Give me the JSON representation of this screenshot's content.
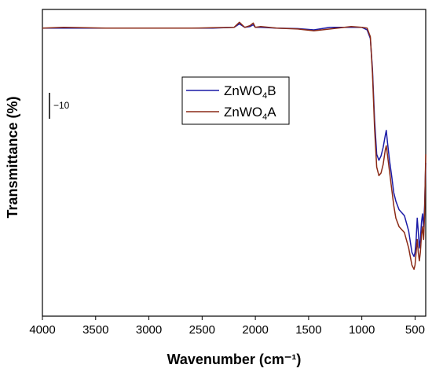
{
  "chart_data": {
    "type": "line",
    "title": "",
    "xlabel": "Wavenumber (cm⁻¹)",
    "ylabel": "Transmittance (%)",
    "xlim": [
      4000,
      400
    ],
    "x_reversed": true,
    "ylim": [
      -4,
      32
    ],
    "y_ticks_shown": false,
    "xticks": [
      4000,
      3500,
      3000,
      2500,
      2000,
      1500,
      1000,
      500
    ],
    "xtick_labels": [
      "4000",
      "3500",
      "3000",
      "2500",
      "2000",
      "1500",
      "1000",
      "500"
    ],
    "grid": false,
    "legend_position": "upper-center",
    "scale_bar_label": "−10",
    "series": [
      {
        "name": "ZnWO₄B",
        "name_base": "ZnWO",
        "name_sub": "4",
        "name_tail": "B",
        "color": "#1a1aa6",
        "points": [
          [
            4000,
            29.8
          ],
          [
            3800,
            29.8
          ],
          [
            3600,
            29.8
          ],
          [
            3400,
            29.8
          ],
          [
            3200,
            29.8
          ],
          [
            3000,
            29.8
          ],
          [
            2800,
            29.8
          ],
          [
            2600,
            29.8
          ],
          [
            2400,
            29.8
          ],
          [
            2200,
            29.9
          ],
          [
            2150,
            30.3
          ],
          [
            2100,
            29.9
          ],
          [
            2050,
            30.0
          ],
          [
            2020,
            30.2
          ],
          [
            2000,
            29.9
          ],
          [
            1950,
            29.9
          ],
          [
            1800,
            29.8
          ],
          [
            1600,
            29.75
          ],
          [
            1450,
            29.6
          ],
          [
            1300,
            29.9
          ],
          [
            1100,
            29.9
          ],
          [
            1000,
            29.9
          ],
          [
            950,
            29.6
          ],
          [
            920,
            28.6
          ],
          [
            900,
            25.0
          ],
          [
            880,
            19.0
          ],
          [
            860,
            15.0
          ],
          [
            840,
            14.3
          ],
          [
            820,
            14.8
          ],
          [
            800,
            15.8
          ],
          [
            780,
            17.2
          ],
          [
            770,
            17.8
          ],
          [
            760,
            16.5
          ],
          [
            740,
            14.3
          ],
          [
            720,
            12.5
          ],
          [
            700,
            10.5
          ],
          [
            680,
            9.5
          ],
          [
            650,
            8.5
          ],
          [
            600,
            7.8
          ],
          [
            560,
            6.0
          ],
          [
            530,
            3.5
          ],
          [
            510,
            3.0
          ],
          [
            500,
            3.5
          ],
          [
            490,
            5.0
          ],
          [
            480,
            7.5
          ],
          [
            470,
            6.0
          ],
          [
            460,
            4.0
          ],
          [
            450,
            5.0
          ],
          [
            440,
            7.0
          ],
          [
            430,
            8.0
          ],
          [
            420,
            6.5
          ],
          [
            410,
            9.0
          ],
          [
            400,
            14.0
          ]
        ]
      },
      {
        "name": "ZnWO₄A",
        "name_base": "ZnWO",
        "name_sub": "4",
        "name_tail": "A",
        "color": "#8b2a16",
        "points": [
          [
            4000,
            29.8
          ],
          [
            3800,
            29.9
          ],
          [
            3600,
            29.85
          ],
          [
            3400,
            29.8
          ],
          [
            3200,
            29.8
          ],
          [
            3000,
            29.8
          ],
          [
            2800,
            29.8
          ],
          [
            2600,
            29.8
          ],
          [
            2400,
            29.85
          ],
          [
            2200,
            29.9
          ],
          [
            2150,
            30.5
          ],
          [
            2100,
            29.9
          ],
          [
            2050,
            30.1
          ],
          [
            2020,
            30.4
          ],
          [
            2000,
            29.9
          ],
          [
            1950,
            30.0
          ],
          [
            1800,
            29.8
          ],
          [
            1600,
            29.7
          ],
          [
            1450,
            29.5
          ],
          [
            1300,
            29.7
          ],
          [
            1100,
            30.0
          ],
          [
            1000,
            29.9
          ],
          [
            950,
            29.8
          ],
          [
            920,
            28.8
          ],
          [
            900,
            24.5
          ],
          [
            880,
            18.0
          ],
          [
            860,
            13.5
          ],
          [
            840,
            12.5
          ],
          [
            820,
            12.8
          ],
          [
            800,
            13.8
          ],
          [
            780,
            15.5
          ],
          [
            770,
            16.0
          ],
          [
            760,
            15.0
          ],
          [
            740,
            13.0
          ],
          [
            720,
            11.0
          ],
          [
            700,
            9.0
          ],
          [
            680,
            7.5
          ],
          [
            650,
            6.5
          ],
          [
            600,
            5.8
          ],
          [
            560,
            4.0
          ],
          [
            530,
            2.0
          ],
          [
            510,
            1.5
          ],
          [
            500,
            2.0
          ],
          [
            490,
            3.5
          ],
          [
            480,
            5.0
          ],
          [
            470,
            3.5
          ],
          [
            460,
            2.5
          ],
          [
            450,
            3.5
          ],
          [
            440,
            5.5
          ],
          [
            430,
            6.5
          ],
          [
            420,
            5.0
          ],
          [
            410,
            8.0
          ],
          [
            400,
            15.0
          ]
        ]
      }
    ]
  }
}
